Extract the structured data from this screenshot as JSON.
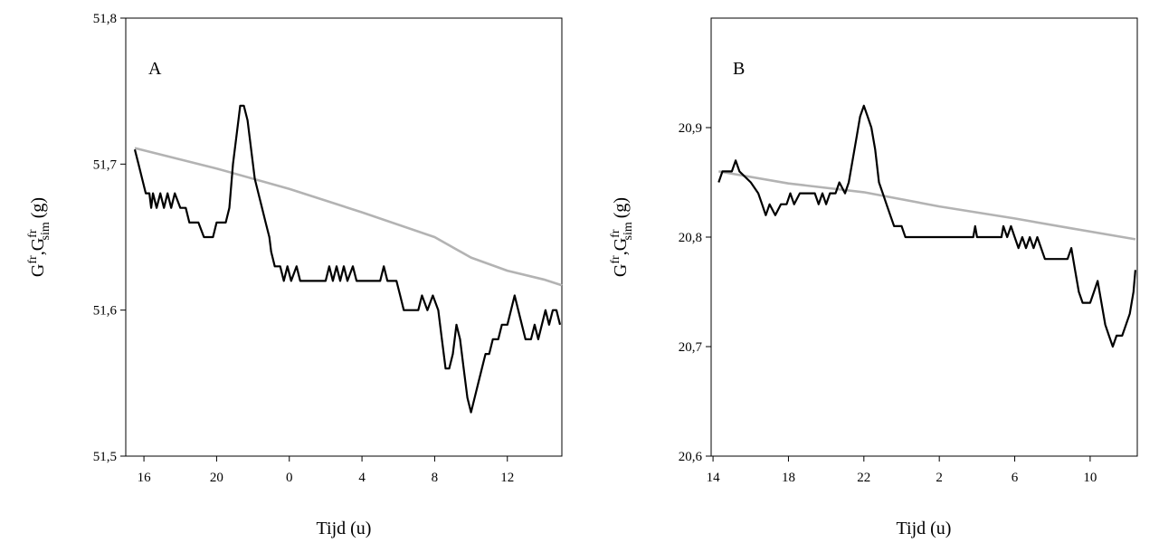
{
  "chart_data": [
    {
      "type": "line",
      "panel_label": "A",
      "xlabel": "Tijd (u)",
      "ylabel": {
        "g": "G",
        "fr": "fr",
        "sim": "sim",
        "unit": "(g)"
      },
      "x_ticks": [
        "16",
        "20",
        "0",
        "4",
        "8",
        "12"
      ],
      "x_tick_hours": [
        16,
        20,
        24,
        28,
        32,
        36
      ],
      "xlim": [
        15,
        39
      ],
      "y_ticks": [
        "51,5",
        "51,6",
        "51,7",
        "51,8"
      ],
      "ylim": [
        51.5,
        51.8
      ],
      "series": [
        {
          "color": "#000000",
          "values": [
            [
              15.5,
              51.71
            ],
            [
              15.7,
              51.7
            ],
            [
              15.9,
              51.69
            ],
            [
              16.1,
              51.68
            ],
            [
              16.3,
              51.68
            ],
            [
              16.4,
              51.67
            ],
            [
              16.5,
              51.68
            ],
            [
              16.7,
              51.67
            ],
            [
              16.9,
              51.68
            ],
            [
              17.1,
              51.67
            ],
            [
              17.3,
              51.68
            ],
            [
              17.5,
              51.67
            ],
            [
              17.7,
              51.68
            ],
            [
              18.0,
              51.67
            ],
            [
              18.3,
              51.67
            ],
            [
              18.5,
              51.66
            ],
            [
              19.0,
              51.66
            ],
            [
              19.3,
              51.65
            ],
            [
              19.8,
              51.65
            ],
            [
              20.0,
              51.66
            ],
            [
              20.5,
              51.66
            ],
            [
              20.7,
              51.67
            ],
            [
              20.9,
              51.7
            ],
            [
              21.1,
              51.72
            ],
            [
              21.3,
              51.74
            ],
            [
              21.5,
              51.74
            ],
            [
              21.7,
              51.73
            ],
            [
              21.9,
              51.71
            ],
            [
              22.1,
              51.69
            ],
            [
              22.3,
              51.68
            ],
            [
              22.5,
              51.67
            ],
            [
              22.7,
              51.66
            ],
            [
              22.9,
              51.65
            ],
            [
              23.0,
              51.64
            ],
            [
              23.2,
              51.63
            ],
            [
              23.5,
              51.63
            ],
            [
              23.7,
              51.62
            ],
            [
              23.9,
              51.63
            ],
            [
              24.1,
              51.62
            ],
            [
              24.4,
              51.63
            ],
            [
              24.6,
              51.62
            ],
            [
              26.0,
              51.62
            ],
            [
              26.2,
              51.63
            ],
            [
              26.4,
              51.62
            ],
            [
              26.6,
              51.63
            ],
            [
              26.8,
              51.62
            ],
            [
              27.0,
              51.63
            ],
            [
              27.2,
              51.62
            ],
            [
              27.5,
              51.63
            ],
            [
              27.7,
              51.62
            ],
            [
              29.0,
              51.62
            ],
            [
              29.2,
              51.63
            ],
            [
              29.4,
              51.62
            ],
            [
              29.9,
              51.62
            ],
            [
              30.1,
              51.61
            ],
            [
              30.3,
              51.6
            ],
            [
              31.1,
              51.6
            ],
            [
              31.3,
              51.61
            ],
            [
              31.6,
              51.6
            ],
            [
              31.9,
              51.61
            ],
            [
              32.2,
              51.6
            ],
            [
              32.4,
              51.58
            ],
            [
              32.6,
              51.56
            ],
            [
              32.8,
              51.56
            ],
            [
              33.0,
              51.57
            ],
            [
              33.2,
              51.59
            ],
            [
              33.4,
              51.58
            ],
            [
              33.6,
              51.56
            ],
            [
              33.8,
              51.54
            ],
            [
              34.0,
              51.53
            ],
            [
              34.2,
              51.54
            ],
            [
              34.4,
              51.55
            ],
            [
              34.6,
              51.56
            ],
            [
              34.8,
              51.57
            ],
            [
              35.0,
              51.57
            ],
            [
              35.2,
              51.58
            ],
            [
              35.5,
              51.58
            ],
            [
              35.7,
              51.59
            ],
            [
              36.0,
              51.59
            ],
            [
              36.2,
              51.6
            ],
            [
              36.4,
              51.61
            ],
            [
              36.6,
              51.6
            ],
            [
              36.8,
              51.59
            ],
            [
              37.0,
              51.58
            ],
            [
              37.3,
              51.58
            ],
            [
              37.5,
              51.59
            ],
            [
              37.7,
              51.58
            ],
            [
              37.9,
              51.59
            ],
            [
              38.1,
              51.6
            ],
            [
              38.3,
              51.59
            ],
            [
              38.5,
              51.6
            ],
            [
              38.7,
              51.6
            ],
            [
              38.9,
              51.59
            ]
          ]
        },
        {
          "color": "#b3b3b3",
          "values": [
            [
              15.5,
              51.711
            ],
            [
              20,
              51.697
            ],
            [
              24,
              51.683
            ],
            [
              28,
              51.667
            ],
            [
              32,
              51.65
            ],
            [
              34,
              51.636
            ],
            [
              36,
              51.627
            ],
            [
              38,
              51.621
            ],
            [
              39,
              51.617
            ]
          ]
        }
      ]
    },
    {
      "type": "line",
      "panel_label": "B",
      "xlabel": "Tijd (u)",
      "ylabel": {
        "g": "G",
        "fr": "fr",
        "sim": "sim",
        "unit": "(g)"
      },
      "x_ticks": [
        "14",
        "18",
        "22",
        "2",
        "6",
        "10"
      ],
      "x_tick_hours": [
        14,
        18,
        22,
        26,
        30,
        34
      ],
      "xlim": [
        13.9,
        36.5
      ],
      "y_ticks": [
        "20,6",
        "20,7",
        "20,8",
        "20,9"
      ],
      "ylim": [
        20.6,
        21.0
      ],
      "series": [
        {
          "color": "#000000",
          "values": [
            [
              14.3,
              20.85
            ],
            [
              14.5,
              20.86
            ],
            [
              15.0,
              20.86
            ],
            [
              15.2,
              20.87
            ],
            [
              15.4,
              20.86
            ],
            [
              16.0,
              20.85
            ],
            [
              16.4,
              20.84
            ],
            [
              16.6,
              20.83
            ],
            [
              16.8,
              20.82
            ],
            [
              17.0,
              20.83
            ],
            [
              17.3,
              20.82
            ],
            [
              17.6,
              20.83
            ],
            [
              17.9,
              20.83
            ],
            [
              18.1,
              20.84
            ],
            [
              18.3,
              20.83
            ],
            [
              18.6,
              20.84
            ],
            [
              19.4,
              20.84
            ],
            [
              19.6,
              20.83
            ],
            [
              19.8,
              20.84
            ],
            [
              20.0,
              20.83
            ],
            [
              20.2,
              20.84
            ],
            [
              20.5,
              20.84
            ],
            [
              20.7,
              20.85
            ],
            [
              21.0,
              20.84
            ],
            [
              21.2,
              20.85
            ],
            [
              21.4,
              20.87
            ],
            [
              21.6,
              20.89
            ],
            [
              21.8,
              20.91
            ],
            [
              22.0,
              20.92
            ],
            [
              22.2,
              20.91
            ],
            [
              22.4,
              20.9
            ],
            [
              22.6,
              20.88
            ],
            [
              22.8,
              20.85
            ],
            [
              23.0,
              20.84
            ],
            [
              23.2,
              20.83
            ],
            [
              23.4,
              20.82
            ],
            [
              23.6,
              20.81
            ],
            [
              24.0,
              20.81
            ],
            [
              24.2,
              20.8
            ],
            [
              27.8,
              20.8
            ],
            [
              27.9,
              20.81
            ],
            [
              28.0,
              20.8
            ],
            [
              29.3,
              20.8
            ],
            [
              29.4,
              20.81
            ],
            [
              29.6,
              20.8
            ],
            [
              29.8,
              20.81
            ],
            [
              30.0,
              20.8
            ],
            [
              30.2,
              20.79
            ],
            [
              30.4,
              20.8
            ],
            [
              30.6,
              20.79
            ],
            [
              30.8,
              20.8
            ],
            [
              31.0,
              20.79
            ],
            [
              31.2,
              20.8
            ],
            [
              31.4,
              20.79
            ],
            [
              31.6,
              20.78
            ],
            [
              32.8,
              20.78
            ],
            [
              33.0,
              20.79
            ],
            [
              33.2,
              20.77
            ],
            [
              33.4,
              20.75
            ],
            [
              33.6,
              20.74
            ],
            [
              34.0,
              20.74
            ],
            [
              34.2,
              20.75
            ],
            [
              34.4,
              20.76
            ],
            [
              34.6,
              20.74
            ],
            [
              34.8,
              20.72
            ],
            [
              35.0,
              20.71
            ],
            [
              35.2,
              20.7
            ],
            [
              35.4,
              20.71
            ],
            [
              35.7,
              20.71
            ],
            [
              35.9,
              20.72
            ],
            [
              36.1,
              20.73
            ],
            [
              36.3,
              20.75
            ],
            [
              36.4,
              20.77
            ]
          ]
        },
        {
          "color": "#b3b3b3",
          "values": [
            [
              14.3,
              20.86
            ],
            [
              18,
              20.849
            ],
            [
              22,
              20.841
            ],
            [
              26,
              20.828
            ],
            [
              30,
              20.817
            ],
            [
              33,
              20.808
            ],
            [
              36.4,
              20.798
            ]
          ]
        }
      ]
    }
  ]
}
